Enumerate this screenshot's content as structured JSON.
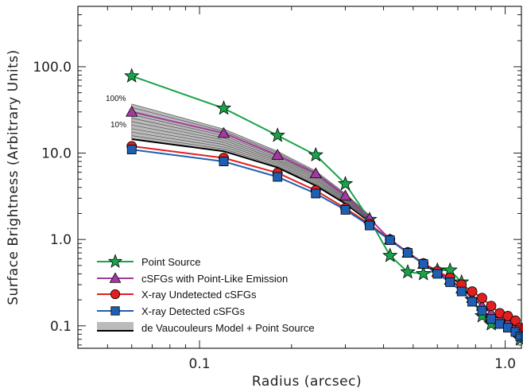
{
  "chart_data": {
    "type": "line",
    "xlabel": "Radius (arcsec)",
    "ylabel": "Surface Brightness (Arbitrary Units)",
    "xscale": "log",
    "yscale": "log",
    "xlim": [
      0.04,
      1.13
    ],
    "ylim": [
      0.055,
      500
    ],
    "xticks": [
      0.1,
      1.0
    ],
    "xtick_labels": [
      "0.1",
      "1.0"
    ],
    "yticks": [
      0.1,
      1.0,
      10.0,
      100.0
    ],
    "ytick_labels": [
      "0.1",
      "1.0",
      "10.0",
      "100.0"
    ],
    "legend_position": "bottom-left",
    "series": [
      {
        "name": "Point Source",
        "color": "#1aa34a",
        "marker": "star",
        "x": [
          0.06,
          0.12,
          0.18,
          0.24,
          0.3,
          0.36,
          0.42,
          0.48,
          0.54,
          0.6,
          0.66,
          0.72,
          0.78,
          0.84,
          0.9,
          0.96,
          1.02,
          1.08,
          1.12
        ],
        "y": [
          78,
          33,
          16,
          9.5,
          4.4,
          1.7,
          0.65,
          0.42,
          0.4,
          0.44,
          0.44,
          0.32,
          0.2,
          0.13,
          0.105,
          0.11,
          0.1,
          0.09,
          0.07
        ]
      },
      {
        "name": "cSFGs with Point-Like Emission",
        "color": "#a23aa0",
        "marker": "triangle",
        "x": [
          0.06,
          0.12,
          0.18,
          0.24,
          0.3,
          0.36,
          0.42,
          0.48,
          0.54,
          0.6,
          0.66,
          0.72,
          0.78,
          0.84,
          0.9,
          0.96,
          1.02,
          1.08,
          1.12
        ],
        "y": [
          30,
          17,
          9.5,
          5.8,
          3.2,
          1.75,
          1.0,
          0.7,
          0.52,
          0.42,
          0.34,
          0.27,
          0.21,
          0.17,
          0.14,
          0.12,
          0.11,
          0.1,
          0.09
        ]
      },
      {
        "name": "X-ray Undetected cSFGs",
        "color": "#e02020",
        "marker": "circle",
        "x": [
          0.06,
          0.12,
          0.18,
          0.24,
          0.3,
          0.36,
          0.42,
          0.48,
          0.54,
          0.6,
          0.66,
          0.72,
          0.78,
          0.84,
          0.9,
          0.96,
          1.02,
          1.08,
          1.12
        ],
        "y": [
          12,
          8.8,
          5.9,
          3.7,
          2.3,
          1.5,
          1.0,
          0.71,
          0.53,
          0.43,
          0.36,
          0.3,
          0.25,
          0.21,
          0.17,
          0.14,
          0.13,
          0.115,
          0.095
        ]
      },
      {
        "name": "X-ray Detected cSFGs",
        "color": "#1f5fb3",
        "marker": "square",
        "x": [
          0.06,
          0.12,
          0.18,
          0.24,
          0.3,
          0.36,
          0.42,
          0.48,
          0.54,
          0.6,
          0.66,
          0.72,
          0.78,
          0.84,
          0.9,
          0.96,
          1.02,
          1.08,
          1.12
        ],
        "y": [
          11,
          8.0,
          5.3,
          3.4,
          2.2,
          1.45,
          0.98,
          0.7,
          0.52,
          0.4,
          0.32,
          0.25,
          0.19,
          0.15,
          0.12,
          0.105,
          0.095,
          0.085,
          0.075
        ]
      }
    ],
    "model_band": {
      "name": "de Vaucouleurs Model + Point Source",
      "x": [
        0.06,
        0.12,
        0.18,
        0.24,
        0.3,
        0.36
      ],
      "lower": [
        14.5,
        10.5,
        6.8,
        4.2,
        2.6,
        1.6
      ],
      "upper": [
        37,
        19,
        10.5,
        6.2,
        3.4,
        1.9
      ],
      "fill_color": "#bbbbbb",
      "line_color": "#000000",
      "n_lines": 10,
      "label_top": "100%",
      "label_bottom": "10%"
    }
  }
}
